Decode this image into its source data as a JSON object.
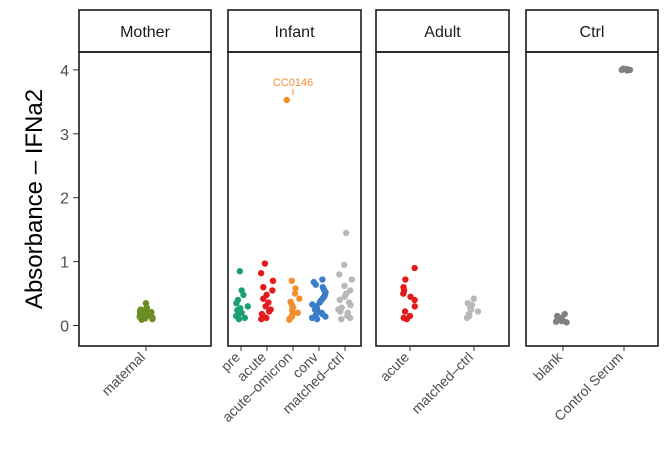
{
  "chart_data": {
    "type": "scatter",
    "ylabel": "Absorbance – IFNa2",
    "xlabel": "",
    "ylim": [
      -0.32,
      4.28
    ],
    "y_ticks": [
      0,
      1,
      2,
      3,
      4
    ],
    "grid": false,
    "legend": "none",
    "panels": [
      {
        "title": "Mother",
        "categories": [
          {
            "label": "maternal",
            "color": "#6b8e23",
            "values": [
              0.35,
              0.28,
              0.25,
              0.24,
              0.23,
              0.22,
              0.22,
              0.21,
              0.2,
              0.2,
              0.19,
              0.19,
              0.18,
              0.18,
              0.17,
              0.17,
              0.16,
              0.16,
              0.15,
              0.15,
              0.14,
              0.14,
              0.13,
              0.12,
              0.12,
              0.11,
              0.1,
              0.09
            ]
          }
        ]
      },
      {
        "title": "Infant",
        "categories": [
          {
            "label": "pre",
            "color": "#1b9e77",
            "values": [
              0.85,
              0.55,
              0.48,
              0.4,
              0.35,
              0.3,
              0.27,
              0.24,
              0.2,
              0.18,
              0.15,
              0.12,
              0.1
            ]
          },
          {
            "label": "acute",
            "color": "#e41a1c",
            "values": [
              0.97,
              0.82,
              0.7,
              0.6,
              0.55,
              0.48,
              0.42,
              0.36,
              0.3,
              0.25,
              0.22,
              0.18,
              0.15,
              0.12,
              0.1
            ]
          },
          {
            "label": "acute–omicron",
            "color": "#f28e2b",
            "values": [
              3.53,
              0.7,
              0.58,
              0.5,
              0.42,
              0.37,
              0.32,
              0.28,
              0.24,
              0.2,
              0.17,
              0.14,
              0.11,
              0.09
            ]
          },
          {
            "label": "conv",
            "color": "#3a7dc9",
            "values": [
              0.72,
              0.68,
              0.64,
              0.6,
              0.56,
              0.52,
              0.48,
              0.45,
              0.42,
              0.39,
              0.36,
              0.33,
              0.3,
              0.27,
              0.25,
              0.22,
              0.2,
              0.18,
              0.16,
              0.14,
              0.12,
              0.1
            ]
          },
          {
            "label": "matched–ctrl",
            "color": "#b8b8b8",
            "values": [
              1.45,
              0.95,
              0.8,
              0.72,
              0.62,
              0.55,
              0.5,
              0.45,
              0.4,
              0.36,
              0.32,
              0.28,
              0.25,
              0.22,
              0.2,
              0.18,
              0.15,
              0.12,
              0.1
            ]
          }
        ],
        "annotation": {
          "text": "CC0146",
          "category": "acute–omicron",
          "y": 3.53,
          "color": "#f28e2b"
        }
      },
      {
        "title": "Adult",
        "categories": [
          {
            "label": "acute",
            "color": "#e41a1c",
            "values": [
              0.9,
              0.72,
              0.6,
              0.55,
              0.5,
              0.45,
              0.4,
              0.3,
              0.22,
              0.15,
              0.12,
              0.1
            ]
          },
          {
            "label": "matched–ctrl",
            "color": "#b8b8b8",
            "values": [
              0.42,
              0.35,
              0.32,
              0.28,
              0.25,
              0.22,
              0.18,
              0.15,
              0.12
            ]
          }
        ]
      },
      {
        "title": "Ctrl",
        "categories": [
          {
            "label": "blank",
            "color": "#808080",
            "values": [
              0.18,
              0.15,
              0.12,
              0.1,
              0.08,
              0.07,
              0.06,
              0.05
            ]
          },
          {
            "label": "Control Serum",
            "color": "#808080",
            "values": [
              4.02,
              4.01,
              4.0,
              4.0,
              3.99
            ]
          }
        ]
      }
    ]
  }
}
